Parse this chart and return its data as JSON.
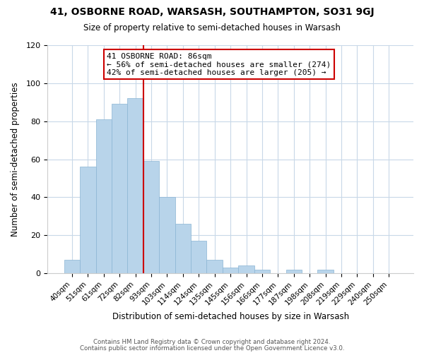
{
  "title": "41, OSBORNE ROAD, WARSASH, SOUTHAMPTON, SO31 9GJ",
  "subtitle": "Size of property relative to semi-detached houses in Warsash",
  "xlabel": "Distribution of semi-detached houses by size in Warsash",
  "ylabel": "Number of semi-detached properties",
  "bar_labels": [
    "40sqm",
    "51sqm",
    "61sqm",
    "72sqm",
    "82sqm",
    "93sqm",
    "103sqm",
    "114sqm",
    "124sqm",
    "135sqm",
    "145sqm",
    "156sqm",
    "166sqm",
    "177sqm",
    "187sqm",
    "198sqm",
    "208sqm",
    "219sqm",
    "229sqm",
    "240sqm",
    "250sqm"
  ],
  "bar_values": [
    7,
    56,
    81,
    89,
    92,
    59,
    40,
    26,
    17,
    7,
    3,
    4,
    2,
    0,
    2,
    0,
    2,
    0,
    0,
    0,
    0
  ],
  "bar_color": "#b8d4ea",
  "bar_edge_color": "#8ab4d4",
  "vline_color": "#cc0000",
  "annotation_title": "41 OSBORNE ROAD: 86sqm",
  "annotation_line1": "← 56% of semi-detached houses are smaller (274)",
  "annotation_line2": "42% of semi-detached houses are larger (205) →",
  "annotation_box_color": "#ffffff",
  "annotation_box_edge": "#cc0000",
  "ylim": [
    0,
    120
  ],
  "yticks": [
    0,
    20,
    40,
    60,
    80,
    100,
    120
  ],
  "footer1": "Contains HM Land Registry data © Crown copyright and database right 2024.",
  "footer2": "Contains public sector information licensed under the Open Government Licence v3.0.",
  "background_color": "#ffffff",
  "grid_color": "#c8d8e8"
}
